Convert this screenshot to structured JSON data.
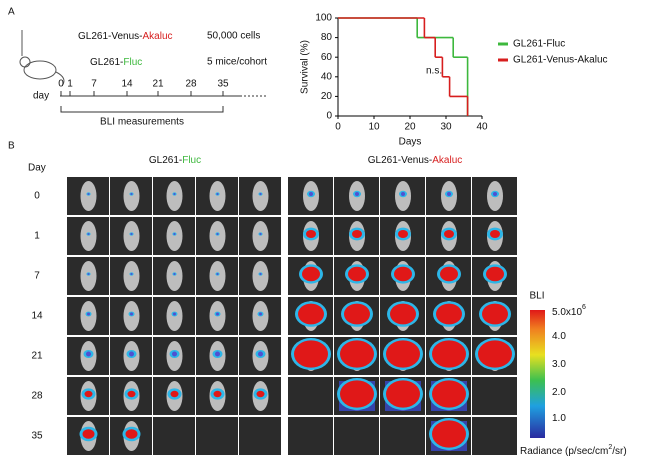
{
  "panel_a": {
    "label": "A",
    "groups": [
      {
        "text": "GL261-Venus-",
        "highlight": "Akaluc",
        "color": "#d71e1e"
      },
      {
        "text": "GL261-",
        "highlight": "Fluc",
        "color": "#3db83d"
      }
    ],
    "cells": "50,000 cells",
    "cohort": "5 mice/cohort",
    "timeline_prefix": "day",
    "days": [
      "0",
      "1",
      "7",
      "14",
      "21",
      "28",
      "35"
    ],
    "bli": "BLI measurements"
  },
  "chart_data": {
    "type": "step",
    "x_label": "Days",
    "y_label": "Survival (%)",
    "xlim": [
      0,
      40
    ],
    "xticks": [
      0,
      10,
      20,
      30,
      40
    ],
    "ylim": [
      0,
      100
    ],
    "yticks": [
      0,
      20,
      40,
      60,
      80,
      100
    ],
    "annotation": "n.s.",
    "series": [
      {
        "name": "GL261-Fluc",
        "color": "#3db83d",
        "x": [
          0,
          22,
          32,
          36
        ],
        "values": [
          100,
          80,
          60,
          0
        ]
      },
      {
        "name": "GL261-Venus-Akaluc",
        "color": "#d71e1e",
        "x": [
          0,
          24,
          27,
          29,
          31,
          36
        ],
        "values": [
          100,
          80,
          60,
          40,
          20,
          0
        ]
      }
    ]
  },
  "panel_b": {
    "label": "B",
    "day_header": "Day",
    "headers": [
      {
        "text": "GL261-",
        "highlight": "Fluc",
        "color": "#3db83d"
      },
      {
        "text": "GL261-Venus-",
        "highlight": "Akaluc",
        "color": "#d71e1e"
      }
    ],
    "rows": [
      "0",
      "1",
      "7",
      "14",
      "21",
      "28",
      "35"
    ],
    "colorbar": {
      "title": "BLI",
      "ticks": [
        {
          "text": "5.0x10",
          "sup": "6"
        },
        {
          "text": "4.0"
        },
        {
          "text": "3.0"
        },
        {
          "text": "2.0"
        },
        {
          "text": "1.0"
        }
      ],
      "unit": {
        "text": "Radiance (p/sec/cm",
        "sup": "2",
        "tail": "/sr)"
      }
    }
  }
}
